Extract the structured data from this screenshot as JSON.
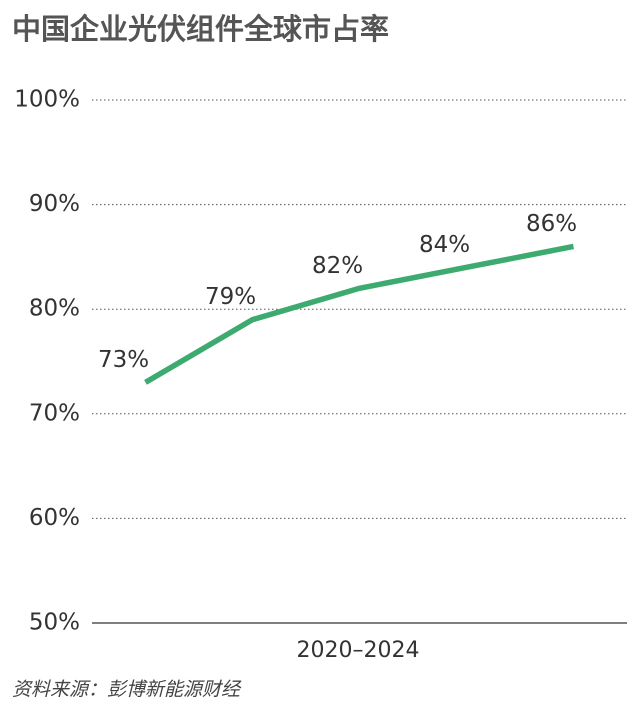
{
  "chart_data": {
    "type": "line",
    "title": "中国企业光伏组件全球市占率",
    "categories": [
      null,
      null,
      null,
      null,
      null
    ],
    "x_label": "2020–2024",
    "series": [
      {
        "name": null,
        "color": "#3dab6f",
        "values": [
          73,
          79,
          82,
          84,
          86
        ],
        "value_labels": [
          "73%",
          "79%",
          "82%",
          "84%",
          "86%"
        ]
      }
    ],
    "ylim": [
      50,
      100
    ],
    "yticks": [
      {
        "value": 50,
        "label": "50%"
      },
      {
        "value": 60,
        "label": "60%"
      },
      {
        "value": 70,
        "label": "70%"
      },
      {
        "value": 80,
        "label": "80%"
      },
      {
        "value": 90,
        "label": "90%"
      },
      {
        "value": 100,
        "label": "100%"
      }
    ],
    "grid": true,
    "source": "资料来源：彭博新能源财经"
  }
}
